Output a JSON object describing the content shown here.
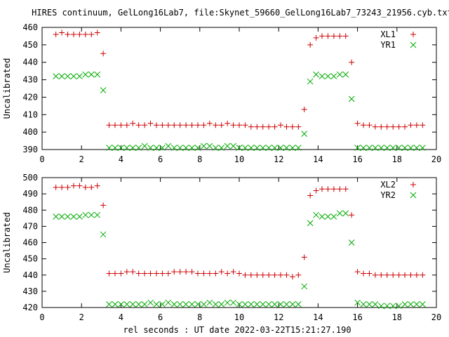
{
  "title": "HIRES continuum, GelLong16Lab7, file:Skynet_59660_GelLong16Lab7_73243_21956.cyb.txt",
  "xlabel": "rel seconds : UT date 2022-03-22T15:21:27.190",
  "colors": {
    "red": "#cc0000",
    "green": "#00aa00"
  },
  "chart_data": [
    {
      "type": "scatter",
      "ylabel": "Uncalibrated",
      "xlim": [
        0,
        20
      ],
      "ylim": [
        390,
        460
      ],
      "xticks": [
        0,
        2,
        4,
        6,
        8,
        10,
        12,
        14,
        16,
        18,
        20
      ],
      "yticks": [
        390,
        400,
        410,
        420,
        430,
        440,
        450,
        460
      ],
      "grid": false,
      "legend_position": "top-right",
      "series": [
        {
          "name": "XL1",
          "marker": "plus",
          "color": "#cc0000",
          "x": [
            0.7,
            1.0,
            1.3,
            1.6,
            1.9,
            2.2,
            2.5,
            2.8,
            3.1,
            3.4,
            3.7,
            4.0,
            4.3,
            4.6,
            4.9,
            5.2,
            5.5,
            5.8,
            6.1,
            6.4,
            6.7,
            7.0,
            7.3,
            7.6,
            7.9,
            8.2,
            8.5,
            8.8,
            9.1,
            9.4,
            9.7,
            10.0,
            10.3,
            10.6,
            10.9,
            11.2,
            11.5,
            11.8,
            12.1,
            12.4,
            12.7,
            13.0,
            13.3,
            13.6,
            13.9,
            14.2,
            14.5,
            14.8,
            15.1,
            15.4,
            15.7,
            16.0,
            16.3,
            16.6,
            16.9,
            17.2,
            17.5,
            17.8,
            18.1,
            18.4,
            18.7,
            19.0,
            19.3
          ],
          "y": [
            456,
            457,
            456,
            456,
            456,
            456,
            456,
            457,
            445,
            404,
            404,
            404,
            404,
            405,
            404,
            404,
            405,
            404,
            404,
            404,
            404,
            404,
            404,
            404,
            404,
            404,
            405,
            404,
            404,
            405,
            404,
            404,
            404,
            403,
            403,
            403,
            403,
            403,
            404,
            403,
            403,
            403,
            413,
            450,
            454,
            455,
            455,
            455,
            455,
            455,
            440,
            405,
            404,
            404,
            403,
            403,
            403,
            403,
            403,
            403,
            404,
            404,
            404
          ]
        },
        {
          "name": "YR1",
          "marker": "cross",
          "color": "#00aa00",
          "x": [
            0.7,
            1.0,
            1.3,
            1.6,
            1.9,
            2.2,
            2.5,
            2.8,
            3.1,
            3.4,
            3.7,
            4.0,
            4.3,
            4.6,
            4.9,
            5.2,
            5.5,
            5.8,
            6.1,
            6.4,
            6.7,
            7.0,
            7.3,
            7.6,
            7.9,
            8.2,
            8.5,
            8.8,
            9.1,
            9.4,
            9.7,
            10.0,
            10.3,
            10.6,
            10.9,
            11.2,
            11.5,
            11.8,
            12.1,
            12.4,
            12.7,
            13.0,
            13.3,
            13.6,
            13.9,
            14.2,
            14.5,
            14.8,
            15.1,
            15.4,
            15.7,
            16.0,
            16.3,
            16.6,
            16.9,
            17.2,
            17.5,
            17.8,
            18.1,
            18.4,
            18.7,
            19.0,
            19.3
          ],
          "y": [
            432,
            432,
            432,
            432,
            432,
            433,
            433,
            433,
            424,
            391,
            391,
            391,
            391,
            391,
            391,
            392,
            391,
            391,
            391,
            392,
            391,
            391,
            391,
            391,
            391,
            392,
            392,
            391,
            391,
            392,
            392,
            391,
            391,
            391,
            391,
            391,
            391,
            391,
            391,
            391,
            391,
            391,
            399,
            429,
            433,
            432,
            432,
            432,
            433,
            433,
            419,
            391,
            391,
            391,
            391,
            391,
            391,
            391,
            391,
            391,
            391,
            391,
            391
          ]
        }
      ]
    },
    {
      "type": "scatter",
      "ylabel": "Uncalibrated",
      "xlim": [
        0,
        20
      ],
      "ylim": [
        420,
        500
      ],
      "xticks": [
        0,
        2,
        4,
        6,
        8,
        10,
        12,
        14,
        16,
        18,
        20
      ],
      "yticks": [
        420,
        430,
        440,
        450,
        460,
        470,
        480,
        490,
        500
      ],
      "grid": false,
      "legend_position": "top-right",
      "series": [
        {
          "name": "XL2",
          "marker": "plus",
          "color": "#cc0000",
          "x": [
            0.7,
            1.0,
            1.3,
            1.6,
            1.9,
            2.2,
            2.5,
            2.8,
            3.1,
            3.4,
            3.7,
            4.0,
            4.3,
            4.6,
            4.9,
            5.2,
            5.5,
            5.8,
            6.1,
            6.4,
            6.7,
            7.0,
            7.3,
            7.6,
            7.9,
            8.2,
            8.5,
            8.8,
            9.1,
            9.4,
            9.7,
            10.0,
            10.3,
            10.6,
            10.9,
            11.2,
            11.5,
            11.8,
            12.1,
            12.4,
            12.7,
            13.0,
            13.3,
            13.6,
            13.9,
            14.2,
            14.5,
            14.8,
            15.1,
            15.4,
            15.7,
            16.0,
            16.3,
            16.6,
            16.9,
            17.2,
            17.5,
            17.8,
            18.1,
            18.4,
            18.7,
            19.0,
            19.3
          ],
          "y": [
            494,
            494,
            494,
            495,
            495,
            494,
            494,
            495,
            483,
            441,
            441,
            441,
            442,
            442,
            441,
            441,
            441,
            441,
            441,
            441,
            442,
            442,
            442,
            442,
            441,
            441,
            441,
            441,
            442,
            441,
            442,
            441,
            440,
            440,
            440,
            440,
            440,
            440,
            440,
            440,
            439,
            440,
            451,
            489,
            492,
            493,
            493,
            493,
            493,
            493,
            477,
            442,
            441,
            441,
            440,
            440,
            440,
            440,
            440,
            440,
            440,
            440,
            440
          ]
        },
        {
          "name": "YR2",
          "marker": "cross",
          "color": "#00aa00",
          "x": [
            0.7,
            1.0,
            1.3,
            1.6,
            1.9,
            2.2,
            2.5,
            2.8,
            3.1,
            3.4,
            3.7,
            4.0,
            4.3,
            4.6,
            4.9,
            5.2,
            5.5,
            5.8,
            6.1,
            6.4,
            6.7,
            7.0,
            7.3,
            7.6,
            7.9,
            8.2,
            8.5,
            8.8,
            9.1,
            9.4,
            9.7,
            10.0,
            10.3,
            10.6,
            10.9,
            11.2,
            11.5,
            11.8,
            12.1,
            12.4,
            12.7,
            13.0,
            13.3,
            13.6,
            13.9,
            14.2,
            14.5,
            14.8,
            15.1,
            15.4,
            15.7,
            16.0,
            16.3,
            16.6,
            16.9,
            17.2,
            17.5,
            17.8,
            18.1,
            18.4,
            18.7,
            19.0,
            19.3
          ],
          "y": [
            476,
            476,
            476,
            476,
            476,
            477,
            477,
            477,
            465,
            422,
            422,
            422,
            422,
            422,
            422,
            422,
            423,
            422,
            422,
            423,
            422,
            422,
            422,
            422,
            422,
            422,
            423,
            422,
            422,
            423,
            423,
            422,
            422,
            422,
            422,
            422,
            422,
            422,
            422,
            422,
            422,
            422,
            433,
            472,
            477,
            476,
            476,
            476,
            478,
            478,
            460,
            423,
            422,
            422,
            422,
            421,
            421,
            421,
            421,
            422,
            422,
            422,
            422
          ]
        }
      ]
    }
  ]
}
